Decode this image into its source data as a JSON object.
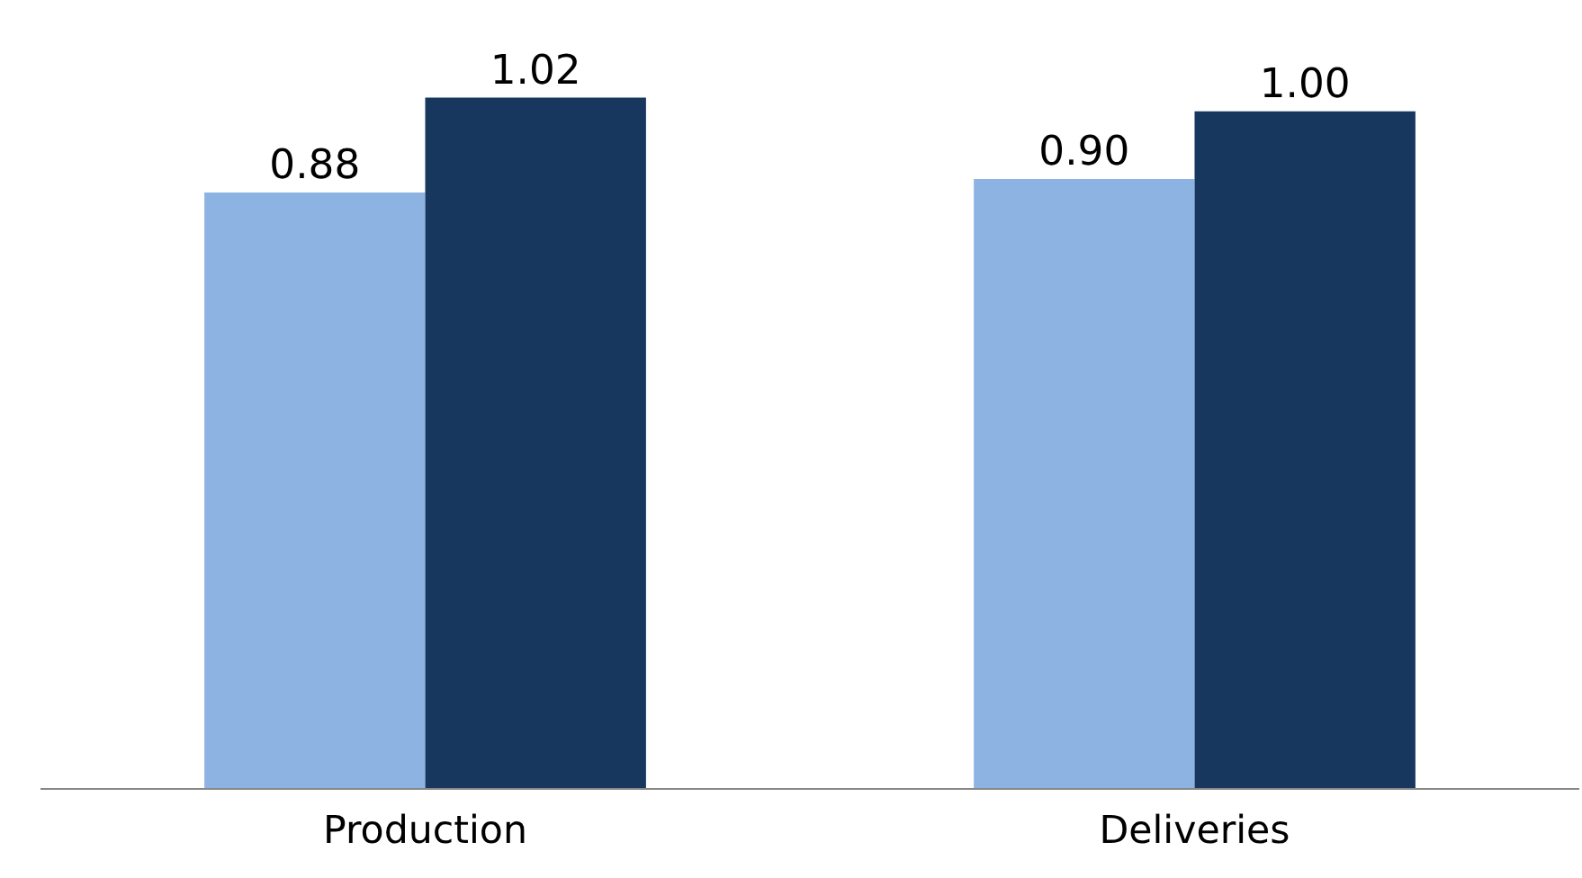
{
  "chart_data": {
    "type": "bar",
    "categories": [
      "Production",
      "Deliveries"
    ],
    "series": [
      {
        "color": "#8db3e2",
        "values": [
          0.88,
          0.9
        ],
        "value_labels": [
          "0.88",
          "0.90"
        ]
      },
      {
        "color": "#17375e",
        "values": [
          1.02,
          1.0
        ],
        "value_labels": [
          "1.02",
          "1.00"
        ]
      }
    ],
    "tick_labels": "x",
    "grid": false
  }
}
